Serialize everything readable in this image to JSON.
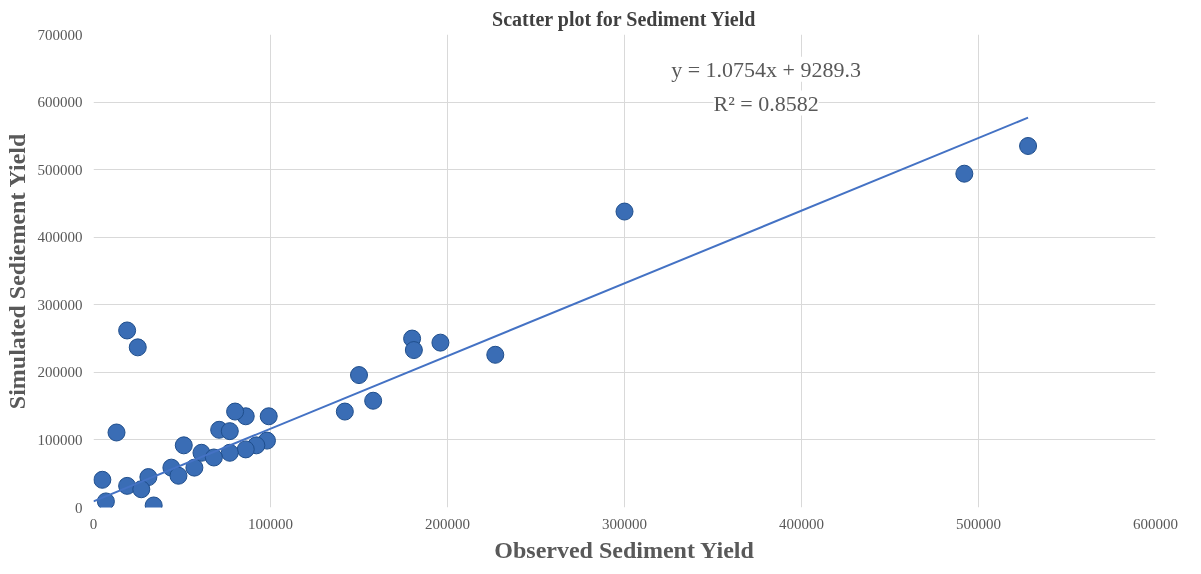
{
  "chart_data": {
    "type": "scatter",
    "title": "Scatter plot for Sediment Yield",
    "xlabel": "Observed Sediment Yield",
    "ylabel": "Simulated Sediement Yield",
    "annotations": [
      "y = 1.0754x + 9289.3",
      "R² = 0.8582"
    ],
    "xlim": [
      0,
      600000
    ],
    "xticks": [
      0,
      100000,
      200000,
      300000,
      400000,
      500000,
      600000
    ],
    "ylim": [
      0,
      700000
    ],
    "yticks": [
      0,
      100000,
      200000,
      300000,
      400000,
      500000,
      600000,
      700000
    ],
    "grid": true,
    "marker": "circle",
    "series": [
      {
        "color": "#3a6db5",
        "x": [
          528000,
          492000,
          300000,
          227000,
          180000,
          181000,
          196000,
          150000,
          158000,
          142000,
          19000,
          25000,
          13000,
          99000,
          86000,
          80000,
          71000,
          77000,
          98000,
          92000,
          86000,
          77000,
          51000,
          61000,
          68000,
          44000,
          48000,
          57000,
          34000,
          5000,
          31000,
          19000,
          27000,
          7000
        ],
        "values": [
          535000,
          494000,
          438000,
          226000,
          250000,
          233000,
          244000,
          196000,
          158000,
          142000,
          262000,
          237000,
          111000,
          135000,
          135000,
          142000,
          115000,
          113000,
          99000,
          92000,
          86000,
          81000,
          92000,
          81000,
          74000,
          59000,
          47000,
          59000,
          3000,
          41000,
          45000,
          32000,
          27000,
          9000
        ]
      },
      {
        "type": "line",
        "marker": "none",
        "color": "#4472c4",
        "x": [
          0,
          528000
        ],
        "values": [
          9000,
          577000
        ]
      }
    ]
  }
}
